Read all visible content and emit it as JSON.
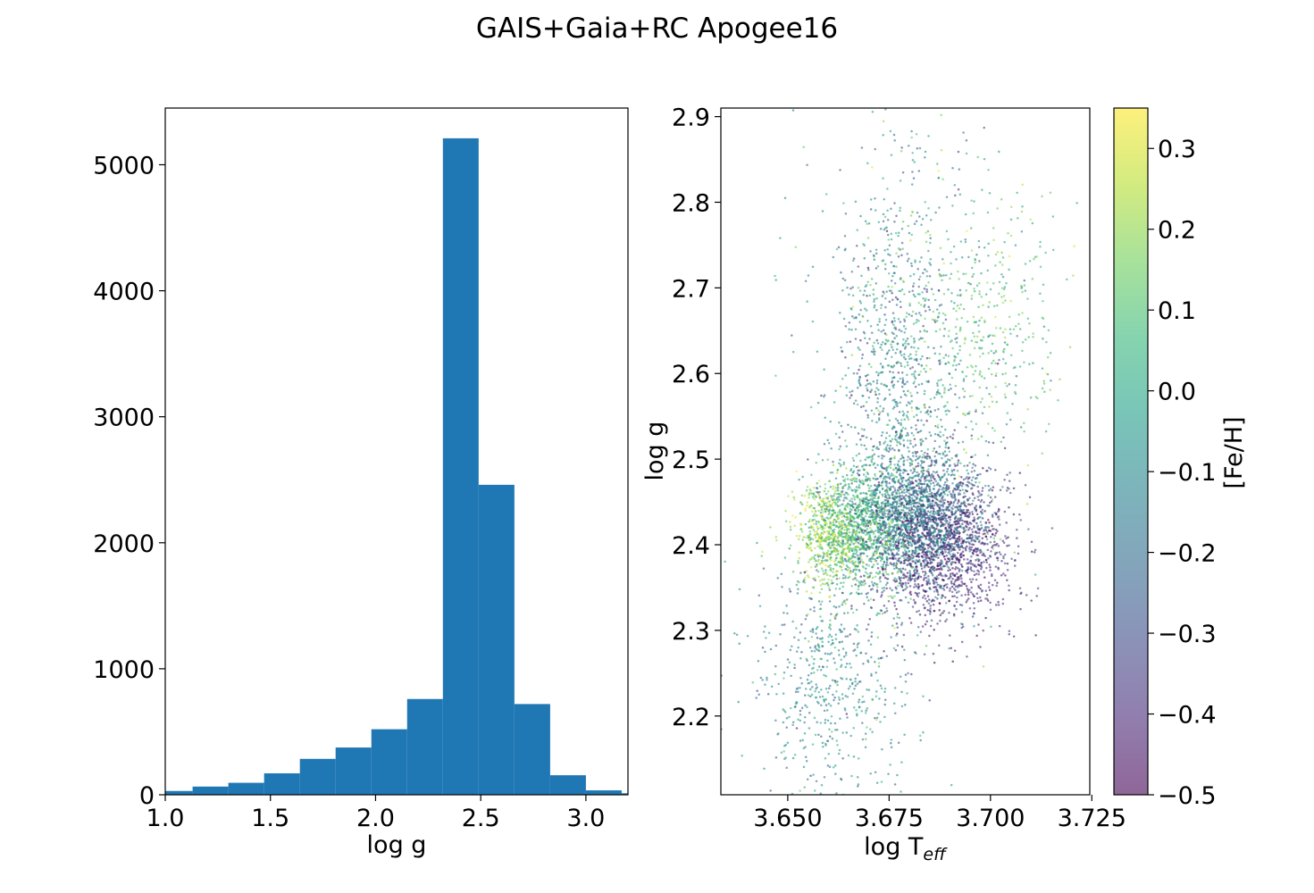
{
  "figure": {
    "title": "GAIS+Gaia+RC Apogee16"
  },
  "chart_data": [
    {
      "type": "bar",
      "subtype": "histogram",
      "xlabel": "log g",
      "ylabel": "",
      "xlim": [
        1.0,
        3.2
      ],
      "ylim": [
        0,
        5450
      ],
      "xticks": [
        1.0,
        1.5,
        2.0,
        2.5,
        3.0
      ],
      "xtick_labels": [
        "1.0",
        "1.5",
        "2.0",
        "2.5",
        "3.0"
      ],
      "yticks": [
        0,
        1000,
        2000,
        3000,
        4000,
        5000
      ],
      "ytick_labels": [
        "0",
        "1000",
        "2000",
        "3000",
        "4000",
        "5000"
      ],
      "color": "#1f77b4",
      "bins": [
        {
          "x0": 0.96,
          "x1": 1.13,
          "count": 30
        },
        {
          "x0": 1.13,
          "x1": 1.3,
          "count": 65
        },
        {
          "x0": 1.3,
          "x1": 1.47,
          "count": 95
        },
        {
          "x0": 1.47,
          "x1": 1.64,
          "count": 170
        },
        {
          "x0": 1.64,
          "x1": 1.81,
          "count": 285
        },
        {
          "x0": 1.81,
          "x1": 1.98,
          "count": 375
        },
        {
          "x0": 1.98,
          "x1": 2.15,
          "count": 520
        },
        {
          "x0": 2.15,
          "x1": 2.32,
          "count": 760
        },
        {
          "x0": 2.32,
          "x1": 2.49,
          "count": 5210
        },
        {
          "x0": 2.49,
          "x1": 2.66,
          "count": 2460
        },
        {
          "x0": 2.66,
          "x1": 2.83,
          "count": 720
        },
        {
          "x0": 2.83,
          "x1": 3.0,
          "count": 155
        },
        {
          "x0": 3.0,
          "x1": 3.17,
          "count": 35
        },
        {
          "x0": 3.17,
          "x1": 3.34,
          "count": 12
        }
      ],
      "grid": false
    },
    {
      "type": "scatter",
      "xlabel": "log T",
      "xlabel_subscript": "eff",
      "ylabel": "log g",
      "xlim": [
        3.6335,
        3.7245
      ],
      "ylim": [
        2.108,
        2.91
      ],
      "xticks": [
        3.65,
        3.675,
        3.7,
        3.725
      ],
      "xtick_labels": [
        "3.650",
        "3.675",
        "3.700",
        "3.725"
      ],
      "yticks": [
        2.2,
        2.3,
        2.4,
        2.5,
        2.6,
        2.7,
        2.8,
        2.9
      ],
      "ytick_labels": [
        "2.2",
        "2.3",
        "2.4",
        "2.5",
        "2.6",
        "2.7",
        "2.8",
        "2.9"
      ],
      "colormap": "viridis",
      "point_alpha": 0.6,
      "color_variable": "[Fe/H]",
      "colorbar": {
        "label": "[Fe/H]",
        "range": [
          -0.5,
          0.35
        ],
        "ticks": [
          0.3,
          0.2,
          0.1,
          0.0,
          -0.1,
          -0.2,
          -0.3,
          -0.4,
          -0.5
        ],
        "tick_labels": [
          "0.3",
          "0.2",
          "0.1",
          "0.0",
          "−0.1",
          "−0.2",
          "−0.3",
          "−0.4",
          "−0.5"
        ],
        "colors": [
          "#440154",
          "#482878",
          "#3e4989",
          "#31688e",
          "#26828e",
          "#1f9e89",
          "#35b779",
          "#6ece58",
          "#b5de2b",
          "#fde725"
        ]
      },
      "populations": [
        {
          "teff_mean": 3.688,
          "teff_sd": 0.0085,
          "logg_mean": 2.4,
          "logg_sd": 0.045,
          "share": 0.24,
          "feh_mean": -0.4,
          "feh_sd": 0.07
        },
        {
          "teff_mean": 3.681,
          "teff_sd": 0.0075,
          "logg_mean": 2.44,
          "logg_sd": 0.04,
          "share": 0.22,
          "feh_mean": -0.15,
          "feh_sd": 0.08
        },
        {
          "teff_mean": 3.668,
          "teff_sd": 0.006,
          "logg_mean": 2.42,
          "logg_sd": 0.035,
          "share": 0.15,
          "feh_mean": 0.05,
          "feh_sd": 0.09
        },
        {
          "teff_mean": 3.66,
          "teff_sd": 0.0045,
          "logg_mean": 2.41,
          "logg_sd": 0.03,
          "share": 0.06,
          "feh_mean": 0.22,
          "feh_sd": 0.07
        },
        {
          "teff_mean": 3.676,
          "teff_sd": 0.0075,
          "logg_mean": 2.6,
          "logg_sd": 0.11,
          "share": 0.12,
          "feh_mean": -0.12,
          "feh_sd": 0.14
        },
        {
          "teff_mean": 3.698,
          "teff_sd": 0.009,
          "logg_mean": 2.65,
          "logg_sd": 0.08,
          "share": 0.06,
          "feh_mean": 0.1,
          "feh_sd": 0.09
        },
        {
          "teff_mean": 3.66,
          "teff_sd": 0.009,
          "logg_mean": 2.24,
          "logg_sd": 0.07,
          "share": 0.09,
          "feh_mean": -0.1,
          "feh_sd": 0.12
        },
        {
          "teff_mean": 3.682,
          "teff_sd": 0.014,
          "logg_mean": 2.62,
          "logg_sd": 0.18,
          "share": 0.06,
          "feh_mean": -0.05,
          "feh_sd": 0.18
        }
      ],
      "n_points_approx": 6500,
      "grid": false
    }
  ]
}
